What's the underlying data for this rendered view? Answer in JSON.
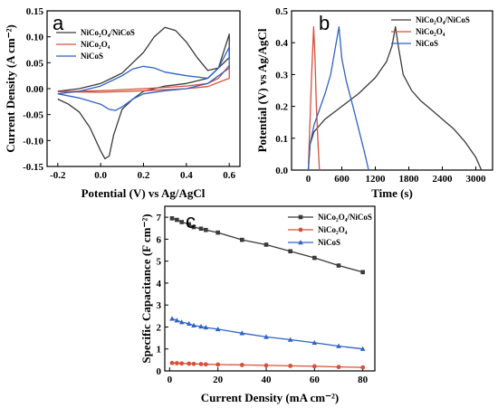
{
  "chart_data": [
    {
      "type": "line",
      "panel": "a",
      "xlabel": "Potential (V) vs Ag/AgCl",
      "ylabel": "Current Density (A cm⁻²)",
      "xlim": [
        -0.25,
        0.65
      ],
      "ylim": [
        -0.15,
        0.15
      ],
      "xticks": [
        "-0.2",
        "0.0",
        "0.2",
        "0.4",
        "0.6"
      ],
      "xtick_values": [
        -0.2,
        0.0,
        0.2,
        0.4,
        0.6
      ],
      "yticks": [
        "-0.15",
        "-0.10",
        "-0.05",
        "0.00",
        "0.05",
        "0.10",
        "0.15"
      ],
      "ytick_values": [
        -0.15,
        -0.1,
        -0.05,
        0.0,
        0.05,
        0.1,
        0.15
      ],
      "legend": "top-left",
      "series": [
        {
          "name": "NiCo₂O₄/NiCoS",
          "color": "#3a3a3a",
          "x": [
            -0.2,
            -0.1,
            0.0,
            0.1,
            0.2,
            0.25,
            0.3,
            0.35,
            0.4,
            0.45,
            0.5,
            0.55,
            0.6,
            0.6,
            0.55,
            0.5,
            0.45,
            0.4,
            0.3,
            0.2,
            0.15,
            0.1,
            0.06,
            0.04,
            0.02,
            0.0,
            -0.05,
            -0.1,
            -0.15,
            -0.2
          ],
          "y": [
            -0.005,
            0.0,
            0.01,
            0.03,
            0.07,
            0.1,
            0.118,
            0.112,
            0.09,
            0.06,
            0.035,
            0.04,
            0.105,
            0.06,
            0.04,
            0.02,
            0.015,
            0.01,
            0.005,
            -0.005,
            -0.02,
            -0.04,
            -0.09,
            -0.13,
            -0.135,
            -0.12,
            -0.075,
            -0.045,
            -0.03,
            -0.02
          ]
        },
        {
          "name": "NiCo₂O₄",
          "color": "#d9503a",
          "x": [
            -0.2,
            0.0,
            0.2,
            0.4,
            0.5,
            0.55,
            0.6,
            0.6,
            0.5,
            0.4,
            0.2,
            0.0,
            -0.2
          ],
          "y": [
            -0.006,
            -0.004,
            0.0,
            0.005,
            0.01,
            0.02,
            0.045,
            0.02,
            0.004,
            0.0,
            -0.004,
            -0.007,
            -0.006
          ]
        },
        {
          "name": "NiCoS",
          "color": "#2f62c4",
          "x": [
            -0.2,
            -0.1,
            0.0,
            0.1,
            0.15,
            0.2,
            0.25,
            0.3,
            0.4,
            0.5,
            0.55,
            0.6,
            0.6,
            0.55,
            0.5,
            0.45,
            0.4,
            0.3,
            0.2,
            0.15,
            0.1,
            0.07,
            0.04,
            0.0,
            -0.1,
            -0.2
          ],
          "y": [
            -0.01,
            -0.005,
            0.005,
            0.025,
            0.038,
            0.043,
            0.04,
            0.032,
            0.025,
            0.02,
            0.04,
            0.08,
            0.04,
            0.025,
            0.01,
            0.005,
            0.0,
            -0.004,
            -0.01,
            -0.02,
            -0.035,
            -0.042,
            -0.04,
            -0.03,
            -0.018,
            -0.01
          ]
        }
      ]
    },
    {
      "type": "line",
      "panel": "b",
      "xlabel": "Time (s)",
      "ylabel": "Potential (V) vs Ag/AgCl",
      "xlim": [
        -300,
        3300
      ],
      "ylim": [
        0,
        0.5
      ],
      "xticks": [
        "0",
        "600",
        "1200",
        "1800",
        "2400",
        "3000"
      ],
      "xtick_values": [
        0,
        600,
        1200,
        1800,
        2400,
        3000
      ],
      "yticks": [
        "0.0",
        "0.1",
        "0.2",
        "0.3",
        "0.4",
        "0.5"
      ],
      "ytick_values": [
        0.0,
        0.1,
        0.2,
        0.3,
        0.4,
        0.5
      ],
      "legend": "top-right",
      "series": [
        {
          "name": "NiCo₂O₄/NiCoS",
          "color": "#3a3a3a",
          "x": [
            0,
            30,
            100,
            300,
            600,
            900,
            1200,
            1400,
            1500,
            1560,
            1620,
            1700,
            1850,
            2000,
            2200,
            2400,
            2600,
            2800,
            3000,
            3100
          ],
          "y": [
            0.0,
            0.08,
            0.12,
            0.16,
            0.2,
            0.24,
            0.29,
            0.34,
            0.39,
            0.45,
            0.38,
            0.3,
            0.25,
            0.22,
            0.19,
            0.16,
            0.13,
            0.09,
            0.04,
            0.0
          ]
        },
        {
          "name": "NiCo₂O₄",
          "color": "#d9503a",
          "x": [
            0,
            20,
            60,
            95,
            120,
            145,
            175,
            200
          ],
          "y": [
            0.0,
            0.1,
            0.3,
            0.45,
            0.35,
            0.2,
            0.08,
            0.0
          ]
        },
        {
          "name": "NiCoS",
          "color": "#2f62c4",
          "x": [
            0,
            30,
            100,
            200,
            300,
            400,
            500,
            550,
            600,
            680,
            800,
            900,
            1000,
            1080
          ],
          "y": [
            0.0,
            0.08,
            0.14,
            0.19,
            0.24,
            0.3,
            0.4,
            0.45,
            0.35,
            0.28,
            0.2,
            0.13,
            0.06,
            0.0
          ]
        }
      ]
    },
    {
      "type": "line",
      "panel": "c",
      "xlabel": "Current Density (mA cm⁻²)",
      "ylabel": "Specific Capacitance (F cm⁻²)",
      "xlim": [
        -2,
        85
      ],
      "ylim": [
        0,
        7.5
      ],
      "xticks": [
        "0",
        "20",
        "40",
        "60",
        "80"
      ],
      "xtick_values": [
        0,
        20,
        40,
        60,
        80
      ],
      "yticks": [
        "0",
        "1",
        "2",
        "3",
        "4",
        "5",
        "6",
        "7"
      ],
      "ytick_values": [
        0,
        1,
        2,
        3,
        4,
        5,
        6,
        7
      ],
      "legend": "top-right",
      "series": [
        {
          "name": "NiCo₂O₄/NiCoS",
          "color": "#3a3a3a",
          "marker": "square",
          "x": [
            1,
            3,
            5,
            8,
            10,
            13,
            15,
            20,
            30,
            40,
            50,
            60,
            70,
            80
          ],
          "y": [
            6.95,
            6.88,
            6.78,
            6.68,
            6.55,
            6.48,
            6.42,
            6.3,
            5.97,
            5.75,
            5.45,
            5.15,
            4.8,
            4.5
          ]
        },
        {
          "name": "NiCo₂O₄",
          "color": "#d9503a",
          "marker": "circle",
          "x": [
            1,
            3,
            5,
            8,
            10,
            13,
            15,
            20,
            30,
            40,
            50,
            60,
            70,
            80
          ],
          "y": [
            0.36,
            0.35,
            0.34,
            0.33,
            0.32,
            0.31,
            0.3,
            0.29,
            0.27,
            0.25,
            0.23,
            0.21,
            0.18,
            0.16
          ]
        },
        {
          "name": "NiCoS",
          "color": "#2f62c4",
          "marker": "triangle",
          "x": [
            1,
            3,
            5,
            8,
            10,
            13,
            15,
            20,
            30,
            40,
            50,
            60,
            70,
            80
          ],
          "y": [
            2.38,
            2.3,
            2.22,
            2.15,
            2.07,
            2.02,
            1.98,
            1.9,
            1.72,
            1.55,
            1.42,
            1.28,
            1.13,
            1.0
          ]
        }
      ]
    }
  ],
  "panel_labels": {
    "a": "a",
    "b": "b",
    "c": "c"
  }
}
